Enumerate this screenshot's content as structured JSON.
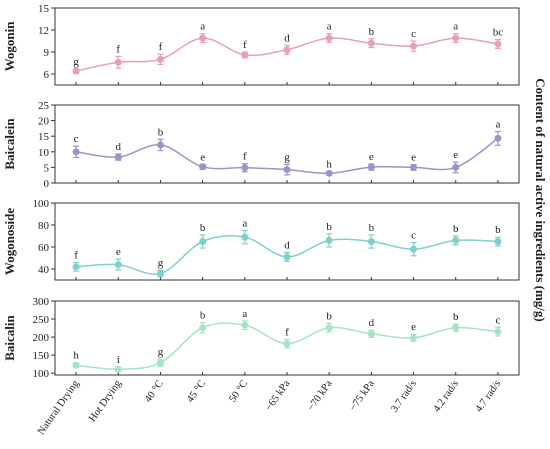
{
  "chart_data": {
    "type": "line",
    "right_label": "Content of natural active ingredients (mg/g)",
    "categories": [
      "Natural Drying",
      "Hot Drying",
      "40 °C",
      "45 °C",
      "50 °C",
      "−65 kPa",
      "−70 kPa",
      "−75 kPa",
      "3.7 rad/s",
      "4.2 rad/s",
      "4.7 rad/s"
    ],
    "panels": [
      {
        "name": "Wogonin",
        "ylabel": "Wogonin",
        "color": "#e8a0b4",
        "ylim": [
          4.5,
          15
        ],
        "yticks": [
          6,
          9,
          12,
          15
        ],
        "values": [
          6.4,
          7.6,
          8.0,
          10.9,
          8.6,
          9.3,
          10.9,
          10.2,
          9.8,
          10.9,
          10.1
        ],
        "errors": [
          0.3,
          0.8,
          0.7,
          0.6,
          0.4,
          0.6,
          0.6,
          0.6,
          0.7,
          0.6,
          0.6
        ],
        "letters": [
          "g",
          "f",
          "f",
          "a",
          "f",
          "d",
          "a",
          "b",
          "c",
          "a",
          "bc"
        ]
      },
      {
        "name": "Baicalein",
        "ylabel": "Baicalein",
        "color": "#9b93c9",
        "ylim": [
          0,
          25
        ],
        "yticks": [
          0,
          5,
          10,
          15,
          20,
          25
        ],
        "values": [
          10.0,
          8.3,
          12.2,
          5.2,
          4.9,
          4.3,
          3.1,
          5.1,
          5.0,
          5.0,
          14.3
        ],
        "errors": [
          1.8,
          1.0,
          1.8,
          0.8,
          1.3,
          1.7,
          0.6,
          1.0,
          0.9,
          1.7,
          2.2
        ],
        "letters": [
          "c",
          "d",
          "b",
          "e",
          "f",
          "g",
          "h",
          "e",
          "e",
          "e",
          "a"
        ]
      },
      {
        "name": "Wogonoside",
        "ylabel": "Wogonoside",
        "color": "#7fd0cc",
        "ylim": [
          30,
          100
        ],
        "yticks": [
          40,
          60,
          80,
          100
        ],
        "values": [
          42,
          44,
          36,
          65,
          69,
          51,
          66,
          65,
          58,
          66,
          65
        ],
        "errors": [
          4,
          5,
          3,
          6,
          6,
          4,
          6,
          6,
          6,
          4,
          4
        ],
        "letters": [
          "f",
          "e",
          "g",
          "b",
          "a",
          "d",
          "b",
          "b",
          "c",
          "b",
          "b"
        ]
      },
      {
        "name": "Baicalin",
        "ylabel": "Baicalin",
        "color": "#a6e3c3",
        "ylim": [
          95,
          300
        ],
        "yticks": [
          100,
          150,
          200,
          250,
          300
        ],
        "values": [
          122,
          111,
          129,
          226,
          233,
          182,
          226,
          209,
          198,
          226,
          215
        ],
        "errors": [
          7,
          6,
          10,
          14,
          12,
          12,
          12,
          10,
          10,
          10,
          12
        ],
        "letters": [
          "h",
          "i",
          "g",
          "b",
          "a",
          "f",
          "b",
          "d",
          "e",
          "b",
          "c"
        ]
      }
    ]
  }
}
